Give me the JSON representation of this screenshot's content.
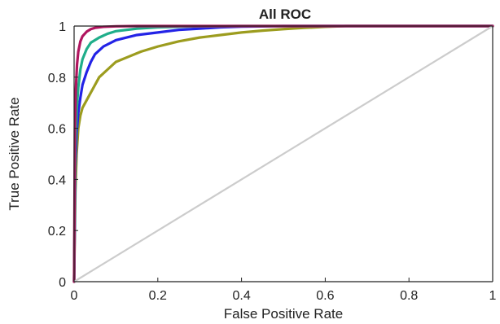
{
  "chart_data": {
    "type": "line",
    "title": "All ROC",
    "xlabel": "False Positive Rate",
    "ylabel": "True Positive Rate",
    "xlim": [
      0,
      1
    ],
    "ylim": [
      0,
      1
    ],
    "x_ticks": [
      0,
      0.2,
      0.4,
      0.6,
      0.8,
      1
    ],
    "y_ticks": [
      0,
      0.2,
      0.4,
      0.6,
      0.8,
      1
    ],
    "x_tick_labels": [
      "0",
      "0.2",
      "0.4",
      "0.6",
      "0.8",
      "1"
    ],
    "y_tick_labels": [
      "0",
      "0.2",
      "0.4",
      "0.6",
      "0.8",
      "1"
    ],
    "grid": false,
    "series": [
      {
        "color": "#9c9c1e",
        "x": [
          0,
          0.003,
          0.006,
          0.01,
          0.015,
          0.02,
          0.03,
          0.04,
          0.05,
          0.06,
          0.08,
          0.1,
          0.13,
          0.16,
          0.2,
          0.25,
          0.3,
          0.35,
          0.4,
          0.45,
          0.5,
          0.55,
          0.6,
          0.65,
          1
        ],
        "y": [
          0,
          0.35,
          0.5,
          0.6,
          0.65,
          0.68,
          0.71,
          0.74,
          0.77,
          0.8,
          0.83,
          0.86,
          0.88,
          0.9,
          0.92,
          0.94,
          0.955,
          0.965,
          0.975,
          0.982,
          0.988,
          0.993,
          0.997,
          1,
          1
        ]
      },
      {
        "color": "#2323e6",
        "x": [
          0,
          0.003,
          0.006,
          0.01,
          0.015,
          0.02,
          0.03,
          0.04,
          0.05,
          0.07,
          0.1,
          0.15,
          0.2,
          0.25,
          0.3,
          0.35,
          0.4,
          0.5,
          1
        ],
        "y": [
          0,
          0.45,
          0.58,
          0.66,
          0.72,
          0.77,
          0.82,
          0.86,
          0.89,
          0.92,
          0.945,
          0.965,
          0.975,
          0.985,
          0.99,
          0.995,
          0.998,
          1,
          1
        ]
      },
      {
        "color": "#1fae8a",
        "x": [
          0,
          0.003,
          0.006,
          0.01,
          0.015,
          0.02,
          0.03,
          0.04,
          0.06,
          0.08,
          0.1,
          0.15,
          0.2,
          0.25,
          0.3,
          0.4,
          1
        ],
        "y": [
          0,
          0.52,
          0.67,
          0.76,
          0.83,
          0.87,
          0.91,
          0.935,
          0.955,
          0.97,
          0.98,
          0.99,
          0.995,
          0.997,
          0.999,
          1,
          1
        ]
      },
      {
        "color": "#b0155f",
        "x": [
          0,
          0.002,
          0.004,
          0.007,
          0.01,
          0.015,
          0.02,
          0.03,
          0.04,
          0.05,
          0.07,
          0.1,
          0.15,
          0.2,
          1
        ],
        "y": [
          0,
          0.6,
          0.75,
          0.85,
          0.9,
          0.94,
          0.96,
          0.978,
          0.988,
          0.993,
          0.997,
          0.999,
          1,
          1,
          1
        ]
      },
      {
        "color": "#cccccc",
        "x": [
          0,
          1
        ],
        "y": [
          0,
          1
        ]
      }
    ]
  }
}
